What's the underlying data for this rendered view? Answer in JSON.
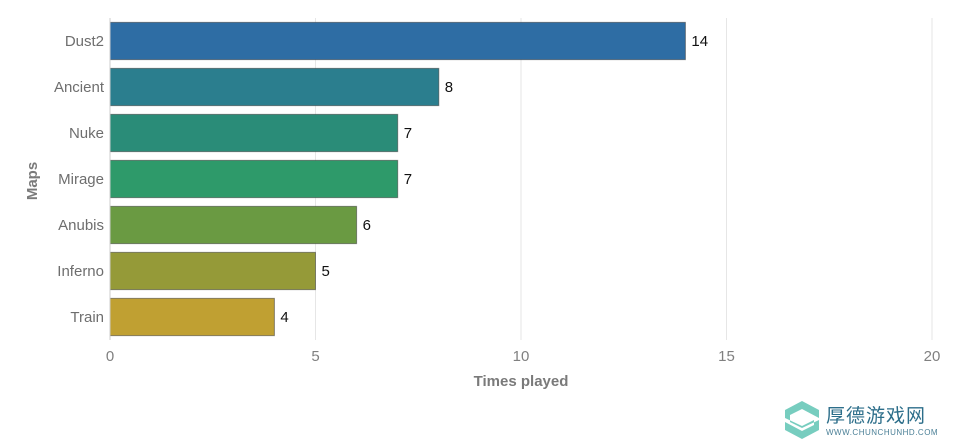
{
  "chart_data": {
    "type": "bar",
    "orientation": "horizontal",
    "categories": [
      "Dust2",
      "Ancient",
      "Nuke",
      "Mirage",
      "Anubis",
      "Inferno",
      "Train"
    ],
    "values": [
      14,
      8,
      7,
      7,
      6,
      5,
      4
    ],
    "colors": [
      "#2e6da4",
      "#2b7e8e",
      "#2a8c78",
      "#2e9a6a",
      "#6a9a42",
      "#959a38",
      "#c0a032"
    ],
    "xlabel": "Times played",
    "ylabel": "Maps",
    "xlim": [
      0,
      20
    ],
    "xticks": [
      0,
      5,
      10,
      15,
      20
    ],
    "grid": "vertical",
    "data_labels": true
  },
  "watermark": {
    "text_cn": "厚德游戏网",
    "url": "WWW.CHUNCHUNHD.COM"
  }
}
